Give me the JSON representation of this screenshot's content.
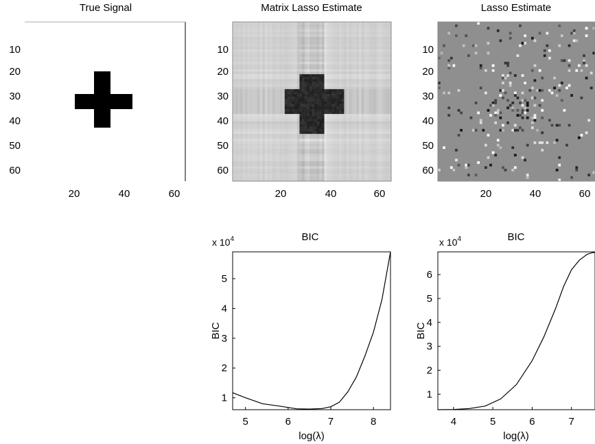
{
  "chart_data": [
    {
      "type": "heatmap",
      "title": "True Signal",
      "grid_size": 64,
      "y_ticks": [
        10,
        20,
        30,
        40,
        50,
        60
      ],
      "x_ticks": [
        20,
        40,
        60
      ],
      "description_values": {
        "background": 0,
        "signal_value": 1,
        "shape": "plus",
        "vertical_bar": {
          "cols": [
            27,
            36
          ],
          "rows": [
            21,
            45
          ]
        },
        "horizontal_bar": {
          "cols": [
            21,
            45
          ],
          "rows": [
            27,
            36
          ]
        }
      }
    },
    {
      "type": "heatmap",
      "title": "Matrix Lasso Estimate",
      "grid_size": 64,
      "y_ticks": [
        10,
        20,
        30,
        40,
        50,
        60
      ],
      "x_ticks": [
        20,
        40,
        60
      ]
    },
    {
      "type": "heatmap",
      "title": "Lasso Estimate",
      "grid_size": 64,
      "y_ticks": [
        10,
        20,
        30,
        40,
        50,
        60
      ],
      "x_ticks": [
        20,
        40,
        60
      ]
    },
    {
      "type": "line",
      "title": "BIC",
      "xlabel": "log(λ)",
      "ylabel": "BIC",
      "exponent_label": "x 10",
      "exponent": "4",
      "xlim": [
        4.7,
        8.4
      ],
      "ylim": [
        0.6,
        5.9
      ],
      "x_ticks": [
        5,
        6,
        7,
        8
      ],
      "y_ticks": [
        1,
        2,
        3,
        4,
        5
      ],
      "series": [
        {
          "x": [
            4.7,
            5.0,
            5.4,
            5.8,
            6.2,
            6.5,
            6.8,
            7.0,
            7.2,
            7.4,
            7.6,
            7.8,
            8.0,
            8.2,
            8.4
          ],
          "y": [
            1.17,
            1.0,
            0.8,
            0.72,
            0.63,
            0.62,
            0.64,
            0.7,
            0.85,
            1.2,
            1.7,
            2.4,
            3.2,
            4.3,
            5.9
          ]
        }
      ]
    },
    {
      "type": "line",
      "title": "BIC",
      "xlabel": "log(λ)",
      "ylabel": "BIC",
      "exponent_label": "x 10",
      "exponent": "4",
      "xlim": [
        3.6,
        7.6
      ],
      "ylim": [
        0.35,
        6.95
      ],
      "x_ticks": [
        4,
        5,
        6,
        7
      ],
      "y_ticks": [
        1,
        2,
        3,
        4,
        5,
        6
      ],
      "series": [
        {
          "x": [
            3.6,
            4.0,
            4.4,
            4.8,
            5.2,
            5.6,
            6.0,
            6.3,
            6.6,
            6.8,
            7.0,
            7.2,
            7.4,
            7.5,
            7.6
          ],
          "y": [
            0.35,
            0.36,
            0.4,
            0.5,
            0.8,
            1.4,
            2.4,
            3.4,
            4.6,
            5.5,
            6.2,
            6.6,
            6.85,
            6.9,
            6.93
          ]
        }
      ]
    }
  ]
}
